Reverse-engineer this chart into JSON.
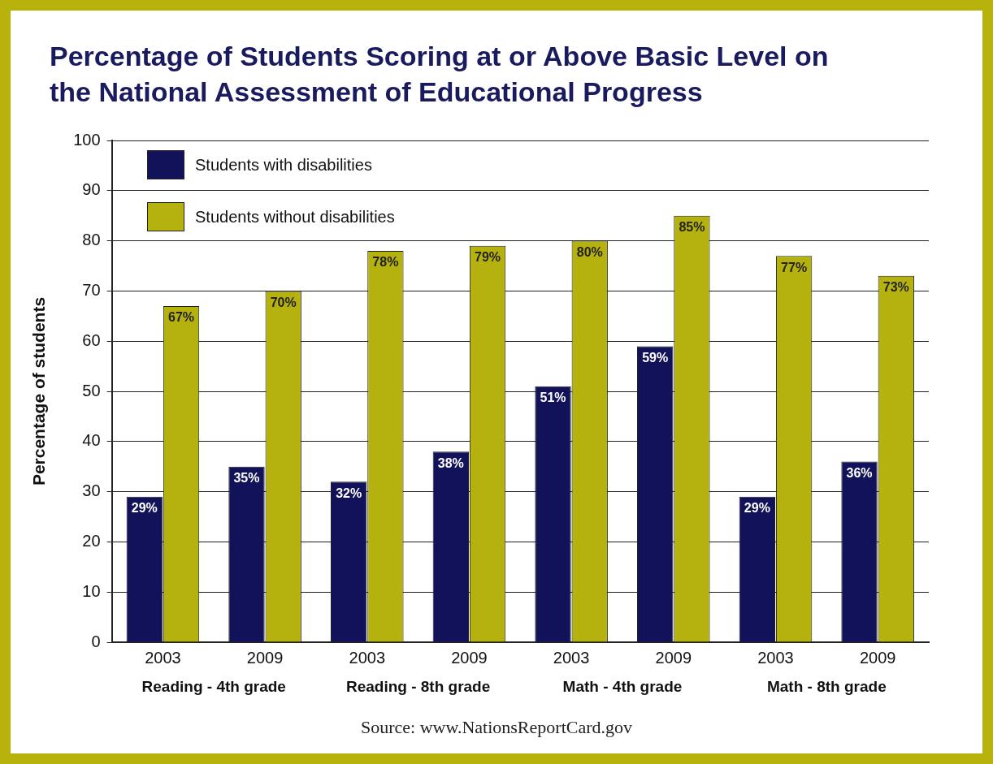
{
  "chart_data": {
    "type": "bar",
    "title": "Percentage of Students Scoring at or Above Basic Level on the National Assessment of Educational Progress",
    "ylabel": "Percentage of students",
    "categories": [
      "2003",
      "2009",
      "2003",
      "2009",
      "2003",
      "2009",
      "2003",
      "2009"
    ],
    "series": [
      {
        "name": "Students with disabilities",
        "color": "#12125a",
        "values": [
          29,
          35,
          32,
          38,
          51,
          59,
          29,
          36
        ],
        "value_labels": [
          "29%",
          "35%",
          "32%",
          "38%",
          "51%",
          "59%",
          "29%",
          "36%"
        ]
      },
      {
        "name": "Students without disabilities",
        "color": "#b5b10e",
        "values": [
          67,
          70,
          78,
          79,
          80,
          85,
          77,
          73
        ],
        "value_labels": [
          "67%",
          "70%",
          "78%",
          "79%",
          "80%",
          "85%",
          "77%",
          "73%"
        ]
      }
    ],
    "ylim": [
      0,
      100
    ],
    "yticks": [
      0,
      10,
      20,
      30,
      40,
      50,
      60,
      70,
      80,
      90,
      100
    ],
    "grid": "y",
    "legend": "top left",
    "annotations": [
      "Reading - 4th grade",
      "Reading - 8th grade",
      "Math - 4th grade",
      "Math - 8th grade",
      "Source: www.NationsReportCard.gov"
    ]
  }
}
